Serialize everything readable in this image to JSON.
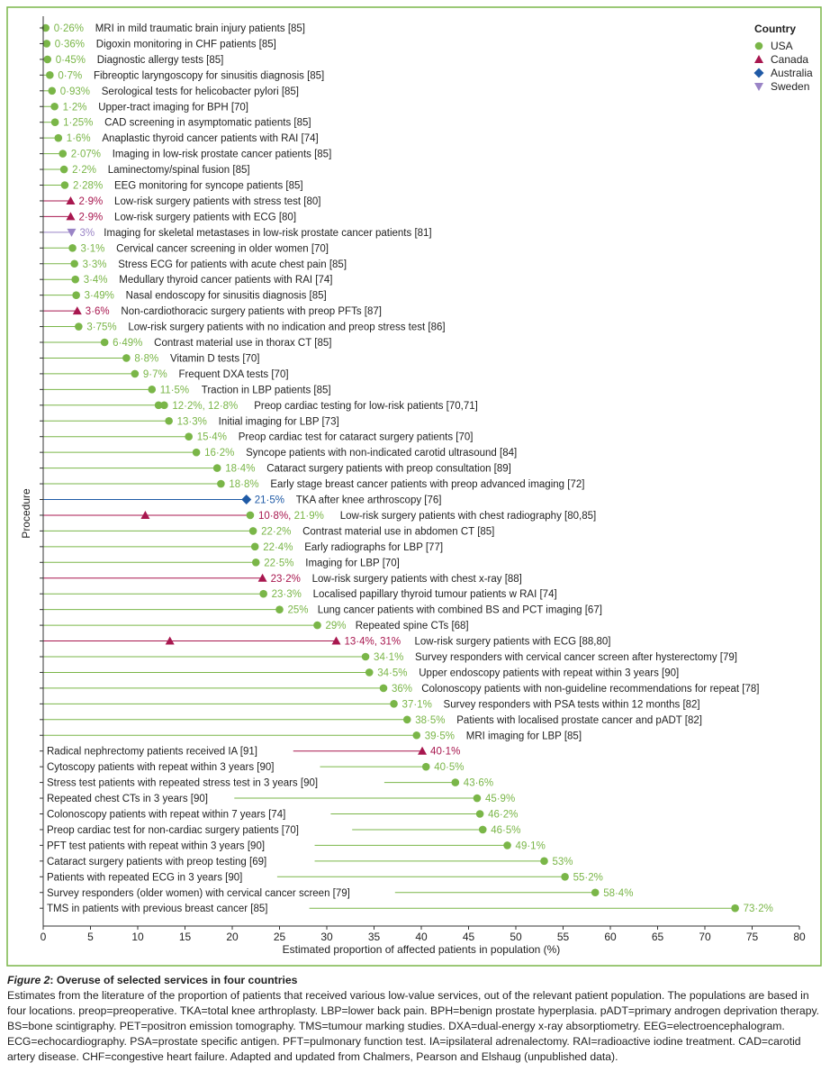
{
  "colors": {
    "USA": "#7ab648",
    "Canada": "#a8174f",
    "Australia": "#1f5aa6",
    "Sweden": "#9a84c6",
    "frame": "#7ab648"
  },
  "chart_data": {
    "type": "scatter",
    "xlabel": "Estimated proportion of affected patients in population (%)",
    "ylabel": "Procedure",
    "xlim": [
      0,
      80
    ],
    "xticks": [
      0,
      5,
      10,
      15,
      20,
      25,
      30,
      35,
      40,
      45,
      50,
      55,
      60,
      65,
      70,
      75,
      80
    ],
    "legend": {
      "title": "Country",
      "position": "top-right",
      "items": [
        {
          "name": "USA",
          "marker": "circle"
        },
        {
          "name": "Canada",
          "marker": "triangle-up"
        },
        {
          "name": "Australia",
          "marker": "diamond"
        },
        {
          "name": "Sweden",
          "marker": "triangle-down"
        }
      ]
    },
    "rows": [
      {
        "label": "MRI in mild traumatic brain injury patients [85]",
        "value_text": "0·26%",
        "points": [
          {
            "x": 0.26,
            "country": "USA"
          }
        ]
      },
      {
        "label": "Digoxin monitoring in CHF patients [85]",
        "value_text": "0·36%",
        "points": [
          {
            "x": 0.36,
            "country": "USA"
          }
        ]
      },
      {
        "label": "Diagnostic allergy tests [85]",
        "value_text": "0·45%",
        "points": [
          {
            "x": 0.45,
            "country": "USA"
          }
        ]
      },
      {
        "label": "Fibreoptic laryngoscopy for sinusitis diagnosis [85]",
        "value_text": "0·7%",
        "points": [
          {
            "x": 0.7,
            "country": "USA"
          }
        ]
      },
      {
        "label": "Serological tests for helicobacter pylori [85]",
        "value_text": "0·93%",
        "points": [
          {
            "x": 0.93,
            "country": "USA"
          }
        ]
      },
      {
        "label": "Upper-tract imaging for BPH [70]",
        "value_text": "1·2%",
        "points": [
          {
            "x": 1.2,
            "country": "USA"
          }
        ]
      },
      {
        "label": "CAD screening in asymptomatic patients [85]",
        "value_text": "1·25%",
        "points": [
          {
            "x": 1.25,
            "country": "USA"
          }
        ]
      },
      {
        "label": "Anaplastic thyroid cancer patients with RAI [74]",
        "value_text": "1·6%",
        "points": [
          {
            "x": 1.6,
            "country": "USA"
          }
        ]
      },
      {
        "label": "Imaging in low-risk prostate cancer patients [85]",
        "value_text": "2·07%",
        "points": [
          {
            "x": 2.07,
            "country": "USA"
          }
        ]
      },
      {
        "label": "Laminectomy/spinal fusion [85]",
        "value_text": "2·2%",
        "points": [
          {
            "x": 2.2,
            "country": "USA"
          }
        ]
      },
      {
        "label": "EEG monitoring for syncope patients [85]",
        "value_text": "2·28%",
        "points": [
          {
            "x": 2.28,
            "country": "USA"
          }
        ]
      },
      {
        "label": "Low-risk surgery patients with stress test [80]",
        "value_text": "2·9%",
        "points": [
          {
            "x": 2.9,
            "country": "Canada"
          }
        ]
      },
      {
        "label": "Low-risk surgery patients with ECG [80]",
        "value_text": "2·9%",
        "points": [
          {
            "x": 2.9,
            "country": "Canada"
          }
        ]
      },
      {
        "label": "Imaging for skeletal metastases in low-risk prostate cancer patients [81]",
        "value_text": "3%",
        "points": [
          {
            "x": 3.0,
            "country": "Sweden"
          }
        ]
      },
      {
        "label": "Cervical cancer screening in older women [70]",
        "value_text": "3·1%",
        "points": [
          {
            "x": 3.1,
            "country": "USA"
          }
        ]
      },
      {
        "label": "Stress ECG for patients with acute chest pain [85]",
        "value_text": "3·3%",
        "points": [
          {
            "x": 3.3,
            "country": "USA"
          }
        ]
      },
      {
        "label": "Medullary thyroid cancer patients with RAI [74]",
        "value_text": "3·4%",
        "points": [
          {
            "x": 3.4,
            "country": "USA"
          }
        ]
      },
      {
        "label": "Nasal endoscopy for sinusitis diagnosis [85]",
        "value_text": "3·49%",
        "points": [
          {
            "x": 3.49,
            "country": "USA"
          }
        ]
      },
      {
        "label": "Non-cardiothoracic surgery patients with preop PFTs [87]",
        "value_text": "3·6%",
        "points": [
          {
            "x": 3.6,
            "country": "Canada"
          }
        ]
      },
      {
        "label": "Low-risk surgery patients with no indication and preop stress test [86]",
        "value_text": "3·75%",
        "points": [
          {
            "x": 3.75,
            "country": "USA"
          }
        ]
      },
      {
        "label": "Contrast material use in thorax CT [85]",
        "value_text": "6·49%",
        "points": [
          {
            "x": 6.49,
            "country": "USA"
          }
        ]
      },
      {
        "label": "Vitamin D tests [70]",
        "value_text": "8·8%",
        "points": [
          {
            "x": 8.8,
            "country": "USA"
          }
        ]
      },
      {
        "label": "Frequent DXA tests [70]",
        "value_text": "9·7%",
        "points": [
          {
            "x": 9.7,
            "country": "USA"
          }
        ]
      },
      {
        "label": "Traction in LBP patients [85]",
        "value_text": "11·5%",
        "points": [
          {
            "x": 11.5,
            "country": "USA"
          }
        ]
      },
      {
        "label": "Preop cardiac testing for low-risk patients [70,71]",
        "value_text": "12·2%, 12·8%",
        "points": [
          {
            "x": 12.2,
            "country": "USA"
          },
          {
            "x": 12.8,
            "country": "USA"
          }
        ]
      },
      {
        "label": "Initial imaging for LBP [73]",
        "value_text": "13·3%",
        "points": [
          {
            "x": 13.3,
            "country": "USA"
          }
        ]
      },
      {
        "label": "Preop cardiac test for cataract surgery patients [70]",
        "value_text": "15·4%",
        "points": [
          {
            "x": 15.4,
            "country": "USA"
          }
        ]
      },
      {
        "label": "Syncope patients with non-indicated carotid ultrasound [84]",
        "value_text": "16·2%",
        "points": [
          {
            "x": 16.2,
            "country": "USA"
          }
        ]
      },
      {
        "label": "Cataract surgery patients with preop consultation [89]",
        "value_text": "18·4%",
        "points": [
          {
            "x": 18.4,
            "country": "USA"
          }
        ]
      },
      {
        "label": "Early stage breast cancer patients with preop advanced imaging [72]",
        "value_text": "18·8%",
        "points": [
          {
            "x": 18.8,
            "country": "USA"
          }
        ]
      },
      {
        "label": "TKA after knee arthroscopy [76]",
        "value_text": "21·5%",
        "points": [
          {
            "x": 21.5,
            "country": "Australia"
          }
        ]
      },
      {
        "label": "Low-risk surgery patients with chest radiography [80,85]",
        "value_text": "10·8%, 21·9%",
        "points": [
          {
            "x": 10.8,
            "country": "Canada"
          },
          {
            "x": 21.9,
            "country": "USA"
          }
        ]
      },
      {
        "label": "Contrast material use in abdomen CT [85]",
        "value_text": "22·2%",
        "points": [
          {
            "x": 22.2,
            "country": "USA"
          }
        ]
      },
      {
        "label": "Early radiographs for LBP [77]",
        "value_text": "22·4%",
        "points": [
          {
            "x": 22.4,
            "country": "USA"
          }
        ]
      },
      {
        "label": "Imaging for LBP [70]",
        "value_text": "22·5%",
        "points": [
          {
            "x": 22.5,
            "country": "USA"
          }
        ]
      },
      {
        "label": "Low-risk surgery patients with chest x-ray [88]",
        "value_text": "23·2%",
        "points": [
          {
            "x": 23.2,
            "country": "Canada"
          }
        ]
      },
      {
        "label": "Localised papillary thyroid tumour patients w RAI [74]",
        "value_text": "23·3%",
        "points": [
          {
            "x": 23.3,
            "country": "USA"
          }
        ]
      },
      {
        "label": "Lung cancer patients with combined BS and PCT imaging [67]",
        "value_text": "25%",
        "points": [
          {
            "x": 25.0,
            "country": "USA"
          }
        ]
      },
      {
        "label": "Repeated spine CTs [68]",
        "value_text": "29%",
        "points": [
          {
            "x": 29.0,
            "country": "USA"
          }
        ]
      },
      {
        "label": "Low-risk surgery patients with ECG [88,80]",
        "value_text": "13·4%, 31%",
        "points": [
          {
            "x": 13.4,
            "country": "Canada"
          },
          {
            "x": 31.0,
            "country": "Canada"
          }
        ]
      },
      {
        "label": "Survey responders with cervical cancer screen after hysterectomy [79]",
        "value_text": "34·1%",
        "points": [
          {
            "x": 34.1,
            "country": "USA"
          }
        ]
      },
      {
        "label": "Upper endoscopy patients with repeat within 3 years [90]",
        "value_text": "34·5%",
        "points": [
          {
            "x": 34.5,
            "country": "USA"
          }
        ]
      },
      {
        "label": "Colonoscopy patients with non-guideline recommendations for repeat [78]",
        "value_text": "36%",
        "points": [
          {
            "x": 36.0,
            "country": "USA"
          }
        ]
      },
      {
        "label": "Survey responders with PSA tests within 12 months [82]",
        "value_text": "37·1%",
        "points": [
          {
            "x": 37.1,
            "country": "USA"
          }
        ]
      },
      {
        "label": "Patients with localised prostate cancer and pADT [82]",
        "value_text": "38·5%",
        "points": [
          {
            "x": 38.5,
            "country": "USA"
          }
        ]
      },
      {
        "label": "MRI imaging for LBP [85]",
        "value_text": "39·5%",
        "points": [
          {
            "x": 39.5,
            "country": "USA"
          }
        ]
      },
      {
        "label": "Radical nephrectomy patients received IA [91]",
        "value_text": "40·1%",
        "points": [
          {
            "x": 40.1,
            "country": "Canada"
          }
        ],
        "label_left": true
      },
      {
        "label": "Cytoscopy patients with repeat within 3 years [90]",
        "value_text": "40·5%",
        "points": [
          {
            "x": 40.5,
            "country": "USA"
          }
        ],
        "label_left": true
      },
      {
        "label": "Stress test patients with repeated stress test in 3 years [90]",
        "value_text": "43·6%",
        "points": [
          {
            "x": 43.6,
            "country": "USA"
          }
        ],
        "label_left": true
      },
      {
        "label": "Repeated chest CTs in 3 years [90]",
        "value_text": "45·9%",
        "points": [
          {
            "x": 45.9,
            "country": "USA"
          }
        ],
        "label_left": true
      },
      {
        "label": "Colonoscopy patients with repeat within 7 years [74]",
        "value_text": "46·2%",
        "points": [
          {
            "x": 46.2,
            "country": "USA"
          }
        ],
        "label_left": true
      },
      {
        "label": "Preop cardiac test for non-cardiac surgery patients [70]",
        "value_text": "46·5%",
        "points": [
          {
            "x": 46.5,
            "country": "USA"
          }
        ],
        "label_left": true
      },
      {
        "label": "PFT test patients with repeat within 3 years [90]",
        "value_text": "49·1%",
        "points": [
          {
            "x": 49.1,
            "country": "USA"
          }
        ],
        "label_left": true
      },
      {
        "label": "Cataract surgery patients with preop testing [69]",
        "value_text": "53%",
        "points": [
          {
            "x": 53.0,
            "country": "USA"
          }
        ],
        "label_left": true
      },
      {
        "label": "Patients with repeated ECG in 3 years [90]",
        "value_text": "55·2%",
        "points": [
          {
            "x": 55.2,
            "country": "USA"
          }
        ],
        "label_left": true
      },
      {
        "label": "Survey responders (older women) with cervical cancer screen [79]",
        "value_text": "58·4%",
        "points": [
          {
            "x": 58.4,
            "country": "USA"
          }
        ],
        "label_left": true
      },
      {
        "label": "TMS in patients with previous breast cancer [85]",
        "value_text": "73·2%",
        "points": [
          {
            "x": 73.2,
            "country": "USA"
          }
        ],
        "label_left": true
      }
    ]
  },
  "caption": {
    "figure_label": "Figure 2",
    "title": ": Overuse of selected services in four countries",
    "text": "Estimates from the literature of the proportion of patients that received various low-value services, out of the relevant patient population. The populations are based in four locations. preop=preoperative. TKA=total knee arthroplasty. LBP=lower back pain. BPH=benign prostate hyperplasia. pADT=primary androgen deprivation therapy. BS=bone scintigraphy. PET=positron emission tomography. TMS=tumour marking studies. DXA=dual-energy x-ray absorptiometry. EEG=electroencephalogram. ECG=echocardiography. PSA=prostate specific antigen. PFT=pulmonary function test. IA=ipsilateral adrenalectomy. RAI=radioactive iodine treatment. CAD=carotid artery disease. CHF=congestive heart failure. Adapted and updated from Chalmers, Pearson and Elshaug (unpublished data)."
  }
}
